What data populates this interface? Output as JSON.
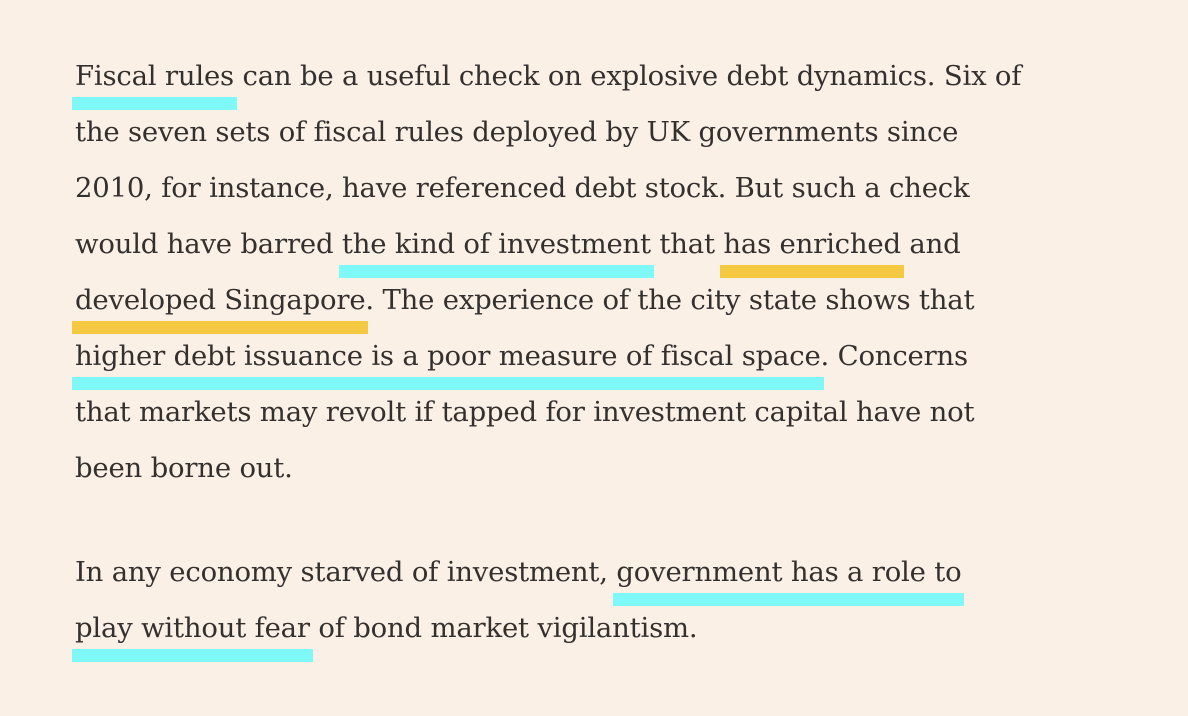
{
  "colors": {
    "background": "#fbf0e6",
    "text": "#33302e",
    "cyan": "#7ff8fa",
    "yellow": "#f5c842"
  },
  "paragraphs": [
    {
      "lines": [
        [
          {
            "text": "Fiscal rules",
            "hl": "cyan"
          },
          {
            "text": " can be a useful check on explosive debt dynamics. Six of"
          }
        ],
        [
          {
            "text": "the seven sets of fiscal rules deployed by UK governments since"
          }
        ],
        [
          {
            "text": "2010, for instance, have referenced debt stock. But such a check"
          }
        ],
        [
          {
            "text": "would have barred "
          },
          {
            "text": "the kind of investment",
            "hl": "cyan"
          },
          {
            "text": " that "
          },
          {
            "text": "has enriched",
            "hl": "yellow"
          },
          {
            "text": " and"
          }
        ],
        [
          {
            "text": "developed Singapore",
            "hl": "yellow"
          },
          {
            "text": ". The experience of the city state shows that"
          }
        ],
        [
          {
            "text": "higher debt issuance is a poor measure of fiscal space",
            "hl": "cyan"
          },
          {
            "text": ". Concerns"
          }
        ],
        [
          {
            "text": "that markets may revolt if tapped for investment capital have not"
          }
        ],
        [
          {
            "text": "been borne out."
          }
        ]
      ]
    },
    {
      "lines": [
        [
          {
            "text": "In any economy starved of investment, "
          },
          {
            "text": "government has a role to",
            "hl": "cyan"
          }
        ],
        [
          {
            "text": "play without fear",
            "hl": "cyan"
          },
          {
            "text": " of bond market vigilantism."
          }
        ]
      ]
    }
  ]
}
